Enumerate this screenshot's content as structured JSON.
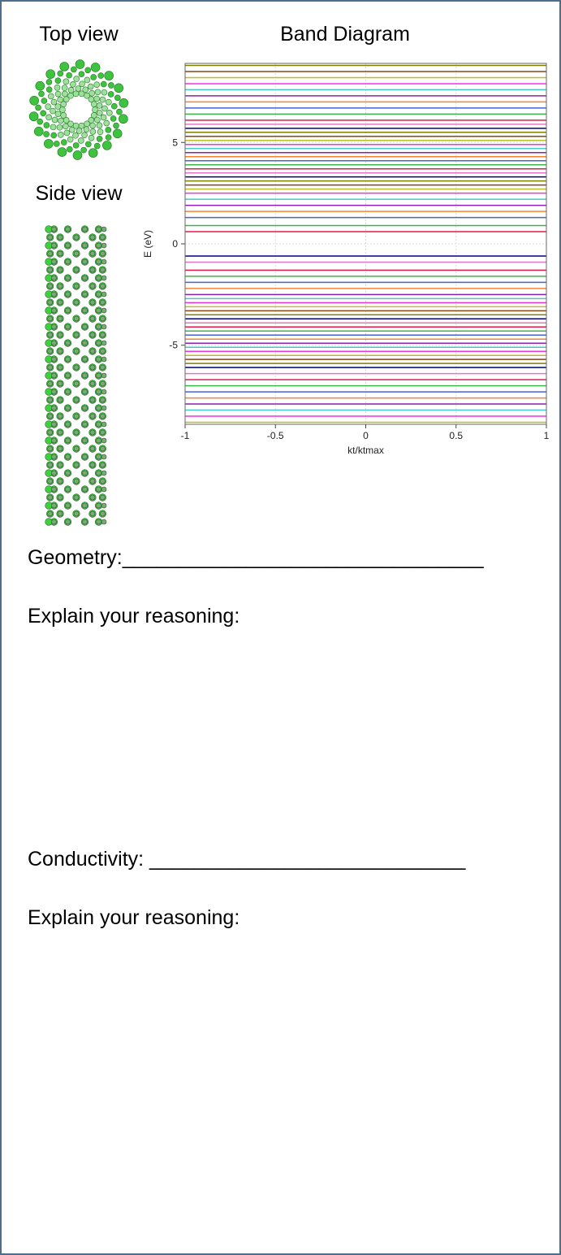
{
  "labels": {
    "top_view": "Top view",
    "side_view": "Side view"
  },
  "questions": [
    {
      "prompt": "Geometry:________________________________",
      "follow_up": "Explain your reasoning:"
    },
    {
      "prompt": "Conductivity: ____________________________",
      "follow_up": "Explain your reasoning:"
    }
  ],
  "chart_data": {
    "type": "bands",
    "title": "Band Diagram",
    "x_label": "kt/ktmax",
    "y_label": "E (eV)",
    "xlim": [
      -1,
      1
    ],
    "ylim": [
      -8.9,
      8.9
    ],
    "xticks": [
      -1,
      -0.5,
      0,
      0.5,
      1
    ],
    "yticks": [
      -5,
      0,
      5
    ],
    "grid": true,
    "colors": [
      "#e6194b",
      "#3cb44b",
      "#4363d8",
      "#f58231",
      "#911eb4",
      "#46c8c8",
      "#f032e6",
      "#bcbd22",
      "#8b4513",
      "#808000",
      "#000080",
      "#e377c2"
    ],
    "values": [
      0.6,
      0.9,
      1.3,
      1.6,
      1.9,
      2.2,
      2.5,
      2.7,
      2.9,
      3.1,
      3.3,
      3.5,
      3.7,
      3.9,
      4.1,
      4.3,
      4.5,
      4.7,
      4.9,
      5.1,
      5.3,
      5.5,
      5.7,
      5.9,
      6.1,
      6.4,
      6.7,
      7.0,
      7.3,
      7.6,
      7.9,
      8.2,
      8.5,
      8.8,
      -0.6,
      -0.9,
      -1.3,
      -1.6,
      -1.9,
      -2.2,
      -2.5,
      -2.7,
      -2.9,
      -3.1,
      -3.3,
      -3.5,
      -3.7,
      -3.9,
      -4.1,
      -4.3,
      -4.5,
      -4.7,
      -4.9,
      -5.1,
      -5.3,
      -5.5,
      -5.7,
      -5.9,
      -6.1,
      -6.4,
      -6.7,
      -7.0,
      -7.3,
      -7.6,
      -7.9,
      -8.2,
      -8.5,
      -8.8
    ]
  }
}
